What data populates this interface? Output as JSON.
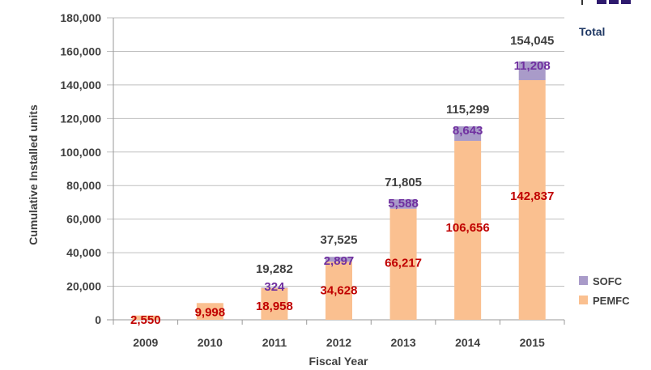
{
  "chart_data": {
    "type": "bar",
    "stacked": true,
    "title": "",
    "xlabel": "Fiscal Year",
    "ylabel": "Cumulative Installed units",
    "ylim": [
      0,
      180000
    ],
    "yticks": [
      0,
      20000,
      40000,
      60000,
      80000,
      100000,
      120000,
      140000,
      160000,
      180000
    ],
    "ytick_labels": [
      "0",
      "20,000",
      "40,000",
      "60,000",
      "80,000",
      "100,000",
      "120,000",
      "140,000",
      "160,000",
      "180,000"
    ],
    "grid": true,
    "legend_position": "right",
    "categories": [
      "2009",
      "2010",
      "2011",
      "2012",
      "2013",
      "2014",
      "2015"
    ],
    "series": [
      {
        "name": "PEMFC",
        "color": "#FAC090",
        "label_color": "#C00000",
        "values": [
          2550,
          9998,
          18958,
          34628,
          66217,
          106656,
          142837
        ],
        "labels": [
          "2,550",
          "9,998",
          "18,958",
          "34,628",
          "66,217",
          "106,656",
          "142,837"
        ]
      },
      {
        "name": "SOFC",
        "color": "#A99BC9",
        "label_color": "#7030A0",
        "values": [
          0,
          0,
          324,
          2897,
          5588,
          8643,
          11208
        ],
        "labels": [
          "",
          "",
          "324",
          "2,897",
          "5,588",
          "8,643",
          "11,208"
        ]
      }
    ],
    "totals": {
      "label": "Total",
      "label_color": "#1F3864",
      "values": [
        2550,
        9998,
        19282,
        37525,
        71805,
        115299,
        154045
      ],
      "labels": [
        "",
        "",
        "19,282",
        "37,525",
        "71,805",
        "115,299",
        "154,045"
      ]
    }
  }
}
